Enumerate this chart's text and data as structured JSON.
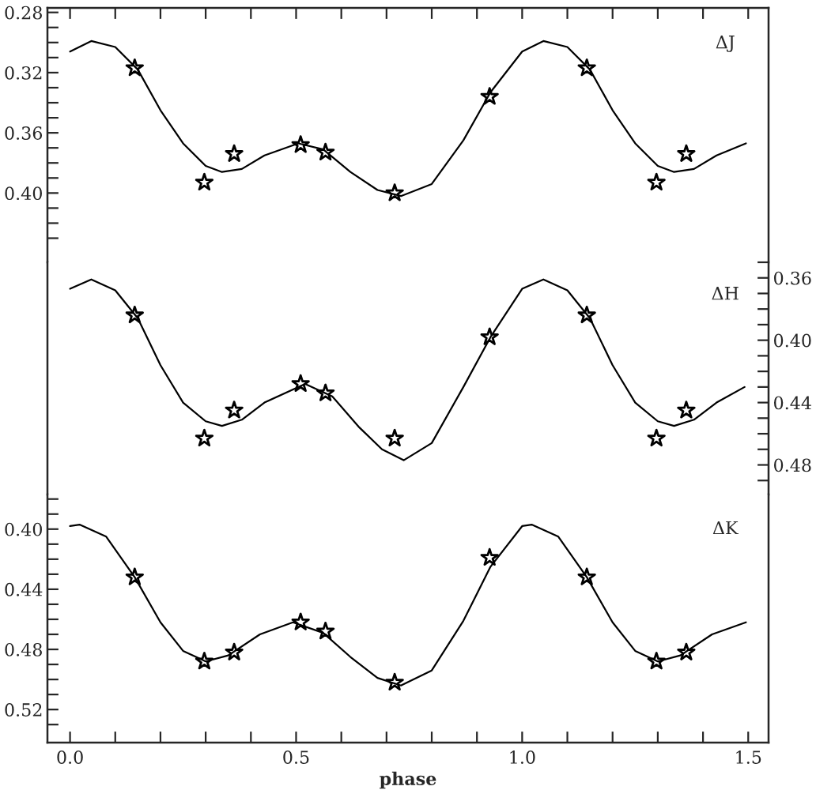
{
  "chart_data": [
    {
      "type": "line",
      "annotations": [
        "ΔJ"
      ],
      "marker": "star",
      "tick_labels": "y",
      "xlim": [
        -0.05,
        1.545
      ],
      "xticks": [
        {
          "value": 0.0,
          "label": null
        },
        {
          "value": 0.1,
          "label": null
        },
        {
          "value": 0.2,
          "label": null
        },
        {
          "value": 0.3,
          "label": null
        },
        {
          "value": 0.4,
          "label": null
        },
        {
          "value": 0.5,
          "label": null
        },
        {
          "value": 0.6,
          "label": null
        },
        {
          "value": 0.7,
          "label": null
        },
        {
          "value": 0.8,
          "label": null
        },
        {
          "value": 0.9,
          "label": null
        },
        {
          "value": 1.0,
          "label": null
        },
        {
          "value": 1.1,
          "label": null
        },
        {
          "value": 1.2,
          "label": null
        },
        {
          "value": 1.3,
          "label": null
        },
        {
          "value": 1.4,
          "label": null
        },
        {
          "value": 1.5,
          "label": null
        }
      ],
      "ylim": [
        0.446,
        0.277
      ],
      "yticks": [
        {
          "value": 0.28,
          "label": "0.28"
        },
        {
          "value": 0.29,
          "label": null
        },
        {
          "value": 0.3,
          "label": null
        },
        {
          "value": 0.31,
          "label": null
        },
        {
          "value": 0.32,
          "label": "0.32"
        },
        {
          "value": 0.33,
          "label": null
        },
        {
          "value": 0.34,
          "label": null
        },
        {
          "value": 0.35,
          "label": null
        },
        {
          "value": 0.36,
          "label": "0.36"
        },
        {
          "value": 0.37,
          "label": null
        },
        {
          "value": 0.38,
          "label": null
        },
        {
          "value": 0.39,
          "label": null
        },
        {
          "value": 0.4,
          "label": "0.40"
        },
        {
          "value": 0.41,
          "label": null
        },
        {
          "value": 0.42,
          "label": null
        },
        {
          "value": 0.43,
          "label": null
        }
      ],
      "series": [
        {
          "type": "scatter",
          "color": "#000000",
          "x": [
            0.143,
            0.297,
            0.363,
            0.51,
            0.565,
            0.718,
            0.928,
            1.143,
            1.297,
            1.363
          ],
          "values": [
            0.317,
            0.393,
            0.374,
            0.368,
            0.373,
            0.4,
            0.336,
            0.317,
            0.393,
            0.374
          ]
        },
        {
          "color": "#000000",
          "marker": "none",
          "x": [
            0.0,
            0.047,
            0.1,
            0.15,
            0.2,
            0.25,
            0.3,
            0.336,
            0.38,
            0.43,
            0.505,
            0.56,
            0.62,
            0.68,
            0.732,
            0.8,
            0.87,
            0.93,
            1.0,
            1.047,
            1.1,
            1.15,
            1.2,
            1.25,
            1.3,
            1.336,
            1.38,
            1.43,
            1.495
          ],
          "values": [
            0.306,
            0.299,
            0.303,
            0.318,
            0.345,
            0.367,
            0.382,
            0.386,
            0.384,
            0.375,
            0.367,
            0.371,
            0.386,
            0.398,
            0.402,
            0.394,
            0.365,
            0.333,
            0.306,
            0.299,
            0.303,
            0.318,
            0.345,
            0.367,
            0.382,
            0.386,
            0.384,
            0.375,
            0.367
          ]
        }
      ]
    },
    {
      "type": "line",
      "annotations": [
        "ΔH"
      ],
      "marker": "star",
      "tick_labels": "y2",
      "xlim": [
        -0.05,
        1.545
      ],
      "y2lim": [
        0.499,
        0.35
      ],
      "y2ticks": [
        {
          "value": 0.35,
          "label": null
        },
        {
          "value": 0.36,
          "label": "0.36"
        },
        {
          "value": 0.37,
          "label": null
        },
        {
          "value": 0.38,
          "label": null
        },
        {
          "value": 0.39,
          "label": null
        },
        {
          "value": 0.4,
          "label": "0.40"
        },
        {
          "value": 0.41,
          "label": null
        },
        {
          "value": 0.42,
          "label": null
        },
        {
          "value": 0.43,
          "label": null
        },
        {
          "value": 0.44,
          "label": "0.44"
        },
        {
          "value": 0.45,
          "label": null
        },
        {
          "value": 0.46,
          "label": null
        },
        {
          "value": 0.47,
          "label": null
        },
        {
          "value": 0.48,
          "label": "0.48"
        },
        {
          "value": 0.49,
          "label": null
        }
      ],
      "series": [
        {
          "type": "scatter",
          "axis": "y2",
          "color": "#000000",
          "x": [
            0.143,
            0.297,
            0.363,
            0.51,
            0.565,
            0.718,
            0.928,
            1.143,
            1.297,
            1.363
          ],
          "values": [
            0.384,
            0.463,
            0.445,
            0.428,
            0.434,
            0.463,
            0.398,
            0.384,
            0.463,
            0.445
          ]
        },
        {
          "axis": "y2",
          "color": "#000000",
          "marker": "none",
          "x": [
            0.0,
            0.047,
            0.1,
            0.15,
            0.2,
            0.25,
            0.3,
            0.336,
            0.38,
            0.43,
            0.52,
            0.58,
            0.64,
            0.69,
            0.738,
            0.8,
            0.87,
            0.93,
            1.0,
            1.047,
            1.1,
            1.15,
            1.2,
            1.25,
            1.3,
            1.336,
            1.38,
            1.43,
            1.492
          ],
          "values": [
            0.367,
            0.361,
            0.368,
            0.386,
            0.416,
            0.44,
            0.452,
            0.455,
            0.451,
            0.44,
            0.428,
            0.436,
            0.456,
            0.47,
            0.477,
            0.466,
            0.43,
            0.398,
            0.367,
            0.361,
            0.368,
            0.386,
            0.416,
            0.44,
            0.452,
            0.455,
            0.451,
            0.44,
            0.43
          ]
        }
      ]
    },
    {
      "type": "line",
      "annotations": [
        "ΔK"
      ],
      "marker": "star",
      "xlabel": "phase",
      "xlim": [
        -0.05,
        1.545
      ],
      "xticks": [
        {
          "value": 0.0,
          "label": "0.0"
        },
        {
          "value": 0.1,
          "label": null
        },
        {
          "value": 0.2,
          "label": null
        },
        {
          "value": 0.3,
          "label": null
        },
        {
          "value": 0.4,
          "label": null
        },
        {
          "value": 0.5,
          "label": "0.5"
        },
        {
          "value": 0.6,
          "label": null
        },
        {
          "value": 0.7,
          "label": null
        },
        {
          "value": 0.8,
          "label": null
        },
        {
          "value": 0.9,
          "label": null
        },
        {
          "value": 1.0,
          "label": "1.0"
        },
        {
          "value": 1.1,
          "label": null
        },
        {
          "value": 1.2,
          "label": null
        },
        {
          "value": 1.3,
          "label": null
        },
        {
          "value": 1.4,
          "label": null
        },
        {
          "value": 1.5,
          "label": "1.5"
        }
      ],
      "ylim": [
        0.542,
        0.377
      ],
      "yticks": [
        {
          "value": 0.38,
          "label": null
        },
        {
          "value": 0.39,
          "label": null
        },
        {
          "value": 0.4,
          "label": "0.40"
        },
        {
          "value": 0.41,
          "label": null
        },
        {
          "value": 0.42,
          "label": null
        },
        {
          "value": 0.43,
          "label": null
        },
        {
          "value": 0.44,
          "label": "0.44"
        },
        {
          "value": 0.45,
          "label": null
        },
        {
          "value": 0.46,
          "label": null
        },
        {
          "value": 0.47,
          "label": null
        },
        {
          "value": 0.48,
          "label": "0.48"
        },
        {
          "value": 0.49,
          "label": null
        },
        {
          "value": 0.5,
          "label": null
        },
        {
          "value": 0.51,
          "label": null
        },
        {
          "value": 0.52,
          "label": "0.52"
        },
        {
          "value": 0.53,
          "label": null
        }
      ],
      "series": [
        {
          "type": "scatter",
          "color": "#000000",
          "x": [
            0.143,
            0.297,
            0.363,
            0.51,
            0.565,
            0.718,
            0.928,
            1.143,
            1.297,
            1.363
          ],
          "values": [
            0.432,
            0.488,
            0.482,
            0.462,
            0.468,
            0.502,
            0.419,
            0.432,
            0.488,
            0.482
          ]
        },
        {
          "color": "#000000",
          "marker": "none",
          "x": [
            0.0,
            0.021,
            0.08,
            0.143,
            0.2,
            0.25,
            0.3,
            0.35,
            0.42,
            0.493,
            0.56,
            0.62,
            0.68,
            0.732,
            0.8,
            0.87,
            0.93,
            1.0,
            1.021,
            1.08,
            1.143,
            1.2,
            1.25,
            1.3,
            1.35,
            1.42,
            1.495
          ],
          "values": [
            0.398,
            0.397,
            0.405,
            0.432,
            0.462,
            0.481,
            0.488,
            0.484,
            0.47,
            0.462,
            0.469,
            0.485,
            0.499,
            0.504,
            0.494,
            0.461,
            0.425,
            0.398,
            0.397,
            0.405,
            0.432,
            0.462,
            0.481,
            0.488,
            0.484,
            0.47,
            0.462
          ]
        }
      ]
    }
  ]
}
